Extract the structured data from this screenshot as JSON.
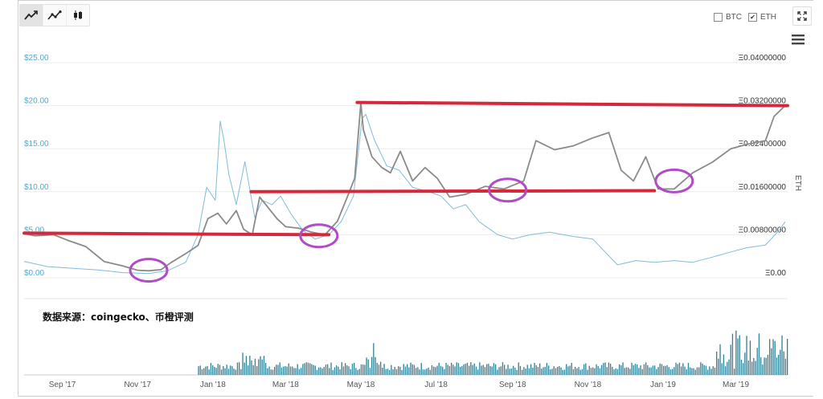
{
  "toolbar": {
    "buttons": [
      {
        "name": "line-chart-button",
        "icon": "line-chart-icon",
        "active": true
      },
      {
        "name": "area-chart-button",
        "icon": "point-line-chart-icon",
        "active": false
      },
      {
        "name": "candlestick-chart-button",
        "icon": "candlestick-icon",
        "active": false
      }
    ]
  },
  "legend": {
    "btc_label": "BTC",
    "btc_checked": false,
    "eth_label": "ETH",
    "eth_checked": true
  },
  "chart_data": {
    "type": "line",
    "left_axis": {
      "ticks": [
        "$25.00",
        "$20.00",
        "$15.00",
        "$10.00",
        "$5.00",
        "$0.00"
      ],
      "values": [
        25,
        20,
        15,
        10,
        5,
        0
      ],
      "color": "#56a8c9"
    },
    "right_axis": {
      "label": "ETH",
      "ticks": [
        "Ξ0.04000000",
        "Ξ0.03200000",
        "Ξ0.02400000",
        "Ξ0.01600000",
        "Ξ0.00800000",
        "Ξ0.00"
      ],
      "values": [
        0.04,
        0.032,
        0.024,
        0.016,
        0.008,
        0
      ],
      "color": "#333333"
    },
    "x_ticks": [
      "Sep '17",
      "Nov '17",
      "Jan '18",
      "Mar '18",
      "May '18",
      "Jul '18",
      "Sep '18",
      "Nov '18",
      "Jan '19",
      "Mar '19"
    ],
    "series": [
      {
        "axis": "left",
        "color": "#7fbcd8",
        "points": [
          [
            "2017-08-01",
            1.9
          ],
          [
            "2017-08-20",
            1.3
          ],
          [
            "2017-09-10",
            1.1
          ],
          [
            "2017-10-01",
            0.9
          ],
          [
            "2017-10-20",
            0.6
          ],
          [
            "2017-11-10",
            0.5
          ],
          [
            "2017-11-25",
            0.8
          ],
          [
            "2017-12-10",
            1.8
          ],
          [
            "2017-12-20",
            5.0
          ],
          [
            "2017-12-27",
            10.5
          ],
          [
            "2018-01-03",
            9.0
          ],
          [
            "2018-01-07",
            18.2
          ],
          [
            "2018-01-10",
            16.0
          ],
          [
            "2018-01-14",
            12.0
          ],
          [
            "2018-01-20",
            8.5
          ],
          [
            "2018-01-27",
            13.5
          ],
          [
            "2018-02-04",
            7.0
          ],
          [
            "2018-02-10",
            9.0
          ],
          [
            "2018-02-18",
            8.5
          ],
          [
            "2018-02-25",
            9.5
          ],
          [
            "2018-03-05",
            7.5
          ],
          [
            "2018-03-15",
            5.5
          ],
          [
            "2018-03-25",
            4.5
          ],
          [
            "2018-04-05",
            5.0
          ],
          [
            "2018-04-15",
            6.5
          ],
          [
            "2018-04-25",
            9.5
          ],
          [
            "2018-05-02",
            18.5
          ],
          [
            "2018-05-05",
            19.0
          ],
          [
            "2018-05-12",
            16.0
          ],
          [
            "2018-05-22",
            13.0
          ],
          [
            "2018-06-01",
            12.5
          ],
          [
            "2018-06-12",
            10.5
          ],
          [
            "2018-06-25",
            10.0
          ],
          [
            "2018-07-05",
            9.5
          ],
          [
            "2018-07-15",
            8.0
          ],
          [
            "2018-07-25",
            8.5
          ],
          [
            "2018-08-05",
            6.5
          ],
          [
            "2018-08-20",
            5.0
          ],
          [
            "2018-09-01",
            4.5
          ],
          [
            "2018-09-15",
            5.0
          ],
          [
            "2018-10-01",
            5.3
          ],
          [
            "2018-10-20",
            4.8
          ],
          [
            "2018-11-05",
            4.5
          ],
          [
            "2018-11-15",
            3.0
          ],
          [
            "2018-11-25",
            1.5
          ],
          [
            "2018-12-10",
            2.0
          ],
          [
            "2018-12-25",
            1.8
          ],
          [
            "2019-01-10",
            2.0
          ],
          [
            "2019-01-25",
            1.8
          ],
          [
            "2019-02-10",
            2.4
          ],
          [
            "2019-02-25",
            3.0
          ],
          [
            "2019-03-10",
            3.5
          ],
          [
            "2019-03-25",
            3.8
          ],
          [
            "2019-04-05",
            5.5
          ],
          [
            "2019-04-10",
            6.5
          ]
        ]
      },
      {
        "axis": "right",
        "color": "#8a8a8a",
        "points": [
          [
            "2017-08-01",
            0.0082
          ],
          [
            "2017-08-10",
            0.0078
          ],
          [
            "2017-08-25",
            0.008
          ],
          [
            "2017-09-05",
            0.007
          ],
          [
            "2017-09-20",
            0.0058
          ],
          [
            "2017-10-05",
            0.003
          ],
          [
            "2017-10-20",
            0.0022
          ],
          [
            "2017-11-01",
            0.0014
          ],
          [
            "2017-11-10",
            0.0013
          ],
          [
            "2017-11-20",
            0.0015
          ],
          [
            "2017-11-28",
            0.0028
          ],
          [
            "2017-12-10",
            0.0045
          ],
          [
            "2017-12-20",
            0.006
          ],
          [
            "2017-12-28",
            0.011
          ],
          [
            "2018-01-05",
            0.012
          ],
          [
            "2018-01-12",
            0.01
          ],
          [
            "2018-01-20",
            0.0125
          ],
          [
            "2018-01-26",
            0.009
          ],
          [
            "2018-02-02",
            0.008
          ],
          [
            "2018-02-08",
            0.015
          ],
          [
            "2018-02-15",
            0.013
          ],
          [
            "2018-02-22",
            0.011
          ],
          [
            "2018-03-01",
            0.0095
          ],
          [
            "2018-03-12",
            0.0092
          ],
          [
            "2018-03-22",
            0.0085
          ],
          [
            "2018-04-02",
            0.008
          ],
          [
            "2018-04-12",
            0.0105
          ],
          [
            "2018-04-20",
            0.015
          ],
          [
            "2018-04-26",
            0.0185
          ],
          [
            "2018-05-01",
            0.0325
          ],
          [
            "2018-05-03",
            0.0275
          ],
          [
            "2018-05-10",
            0.0225
          ],
          [
            "2018-05-18",
            0.0205
          ],
          [
            "2018-05-25",
            0.0195
          ],
          [
            "2018-06-02",
            0.0235
          ],
          [
            "2018-06-12",
            0.018
          ],
          [
            "2018-06-22",
            0.0205
          ],
          [
            "2018-07-02",
            0.0185
          ],
          [
            "2018-07-12",
            0.015
          ],
          [
            "2018-07-25",
            0.0155
          ],
          [
            "2018-08-10",
            0.017
          ],
          [
            "2018-08-25",
            0.0165
          ],
          [
            "2018-09-10",
            0.018
          ],
          [
            "2018-09-20",
            0.0255
          ],
          [
            "2018-10-05",
            0.0238
          ],
          [
            "2018-10-20",
            0.0245
          ],
          [
            "2018-11-05",
            0.026
          ],
          [
            "2018-11-18",
            0.027
          ],
          [
            "2018-11-28",
            0.02
          ],
          [
            "2018-12-08",
            0.018
          ],
          [
            "2018-12-18",
            0.0225
          ],
          [
            "2018-12-28",
            0.0165
          ],
          [
            "2019-01-10",
            0.0165
          ],
          [
            "2019-01-25",
            0.0195
          ],
          [
            "2019-02-10",
            0.0215
          ],
          [
            "2019-02-25",
            0.024
          ],
          [
            "2019-03-10",
            0.0248
          ],
          [
            "2019-03-25",
            0.0255
          ],
          [
            "2019-04-01",
            0.03
          ],
          [
            "2019-04-10",
            0.032
          ]
        ]
      }
    ],
    "volume_color": "#2f7f95"
  },
  "annotation": {
    "source_text": "数据来源：coingecko、币橙评测",
    "line_color": "#d6283a",
    "circle_color": "#b04cc6"
  }
}
